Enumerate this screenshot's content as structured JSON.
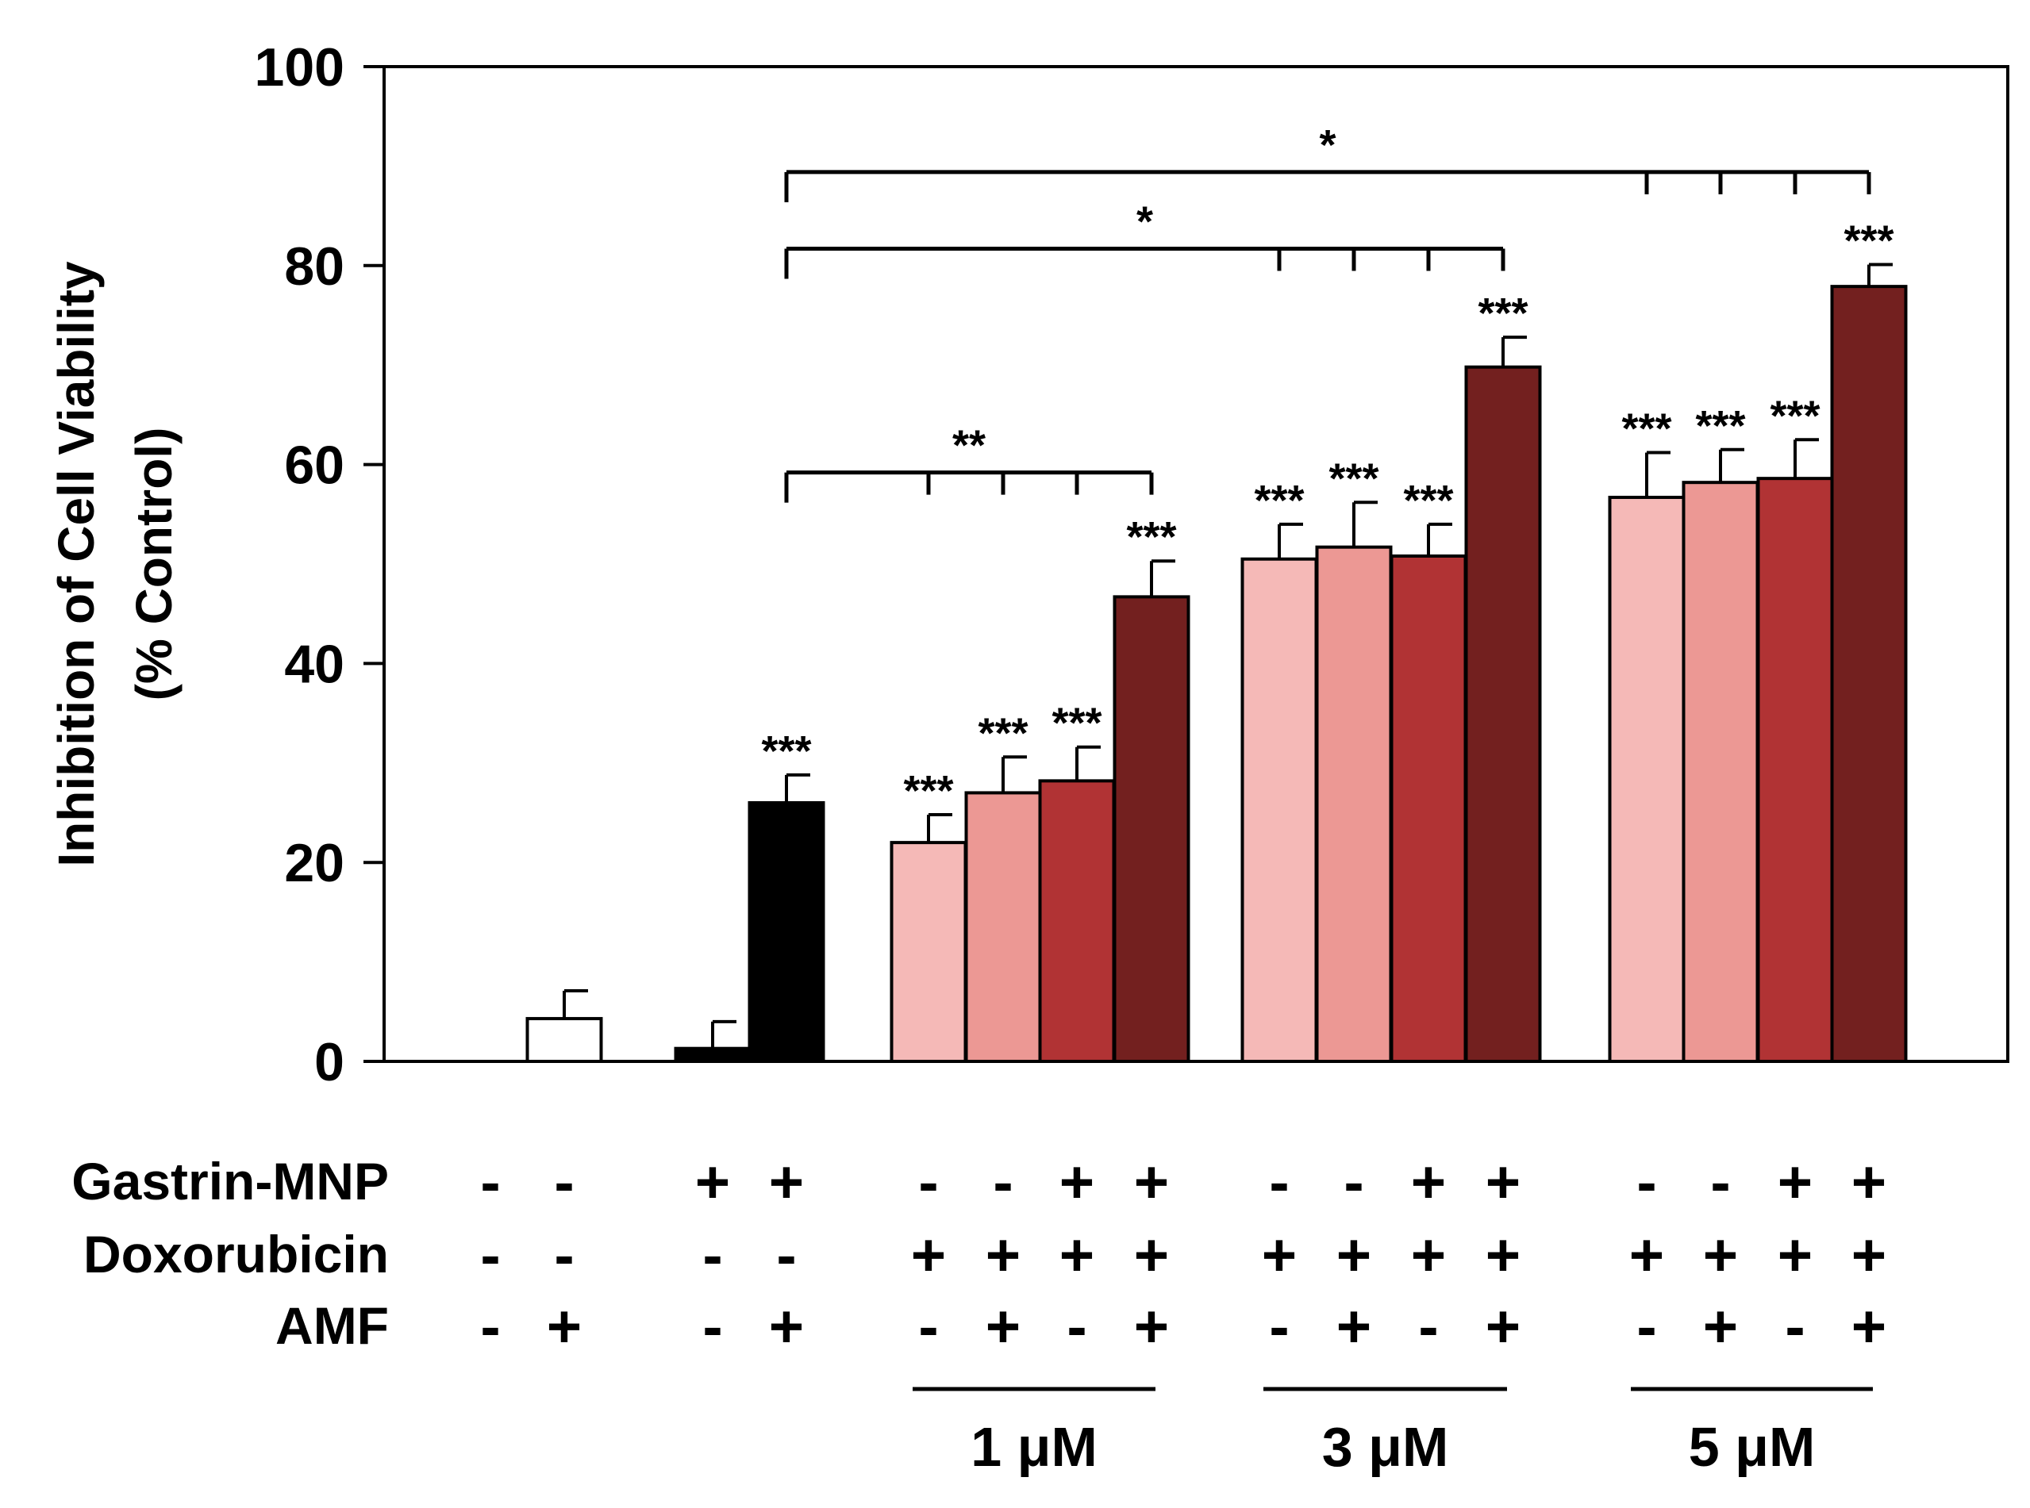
{
  "chart_data": {
    "type": "bar",
    "ylabel_line1": "Inhibition of Cell Viability",
    "ylabel_line2": "(% Control)",
    "ylim": [
      0,
      100
    ],
    "yticks": [
      "0",
      "20",
      "40",
      "60",
      "80",
      "100"
    ],
    "ytick_values": [
      0,
      20,
      40,
      60,
      80,
      100
    ],
    "bars": [
      {
        "value": 0,
        "err": 0,
        "color": "#ffffff",
        "sig": ""
      },
      {
        "value": 4.3,
        "err": 2.8,
        "color": "#ffffff",
        "sig": ""
      },
      {
        "value": 1.3,
        "err": 2.7,
        "color": "#000000",
        "sig": ""
      },
      {
        "value": 26.0,
        "err": 2.8,
        "color": "#000000",
        "sig": "***"
      },
      {
        "value": 22.0,
        "err": 2.8,
        "color": "#f5b9b7",
        "sig": "***"
      },
      {
        "value": 27.0,
        "err": 3.6,
        "color": "#ec9894",
        "sig": "***"
      },
      {
        "value": 28.2,
        "err": 3.4,
        "color": "#b13334",
        "sig": "***"
      },
      {
        "value": 46.7,
        "err": 3.6,
        "color": "#73201f",
        "sig": "***"
      },
      {
        "value": 50.5,
        "err": 3.5,
        "color": "#f5b9b7",
        "sig": "***"
      },
      {
        "value": 51.7,
        "err": 4.5,
        "color": "#ec9894",
        "sig": "***"
      },
      {
        "value": 50.8,
        "err": 3.2,
        "color": "#b13334",
        "sig": "***"
      },
      {
        "value": 69.8,
        "err": 3.0,
        "color": "#73201f",
        "sig": "***"
      },
      {
        "value": 56.7,
        "err": 4.5,
        "color": "#f5b9b7",
        "sig": "***"
      },
      {
        "value": 58.2,
        "err": 3.3,
        "color": "#ec9894",
        "sig": "***"
      },
      {
        "value": 58.6,
        "err": 3.9,
        "color": "#b13334",
        "sig": "***"
      },
      {
        "value": 77.9,
        "err": 2.2,
        "color": "#73201f",
        "sig": "***"
      }
    ],
    "brackets": [
      {
        "from": 3,
        "to": 7,
        "ticks": [
          4,
          5,
          6,
          7
        ],
        "y": 59.2,
        "label": "**"
      },
      {
        "from": 3,
        "to": 11,
        "ticks": [
          8,
          9,
          10,
          11
        ],
        "y": 81.7,
        "label": "*"
      },
      {
        "from": 3,
        "to": 15,
        "ticks": [
          12,
          13,
          14,
          15
        ],
        "y": 89.4,
        "label": "*"
      }
    ],
    "rows": [
      {
        "label": "Gastrin-MNP",
        "signs": [
          "-",
          "-",
          "+",
          "+",
          "-",
          "-",
          "+",
          "+",
          "-",
          "-",
          "+",
          "+",
          "-",
          "-",
          "+",
          "+"
        ]
      },
      {
        "label": "Doxorubicin",
        "signs": [
          "-",
          "-",
          "-",
          "-",
          "+",
          "+",
          "+",
          "+",
          "+",
          "+",
          "+",
          "+",
          "+",
          "+",
          "+",
          "+"
        ]
      },
      {
        "label": "AMF",
        "signs": [
          "-",
          "+",
          "-",
          "+",
          "-",
          "+",
          "-",
          "+",
          "-",
          "+",
          "-",
          "+",
          "-",
          "+",
          "-",
          "+"
        ]
      }
    ],
    "concentrations": [
      {
        "label": "1 μM",
        "from": 4,
        "to": 7
      },
      {
        "label": "3 μM",
        "from": 8,
        "to": 11
      },
      {
        "label": "5 μM",
        "from": 12,
        "to": 15
      }
    ]
  }
}
